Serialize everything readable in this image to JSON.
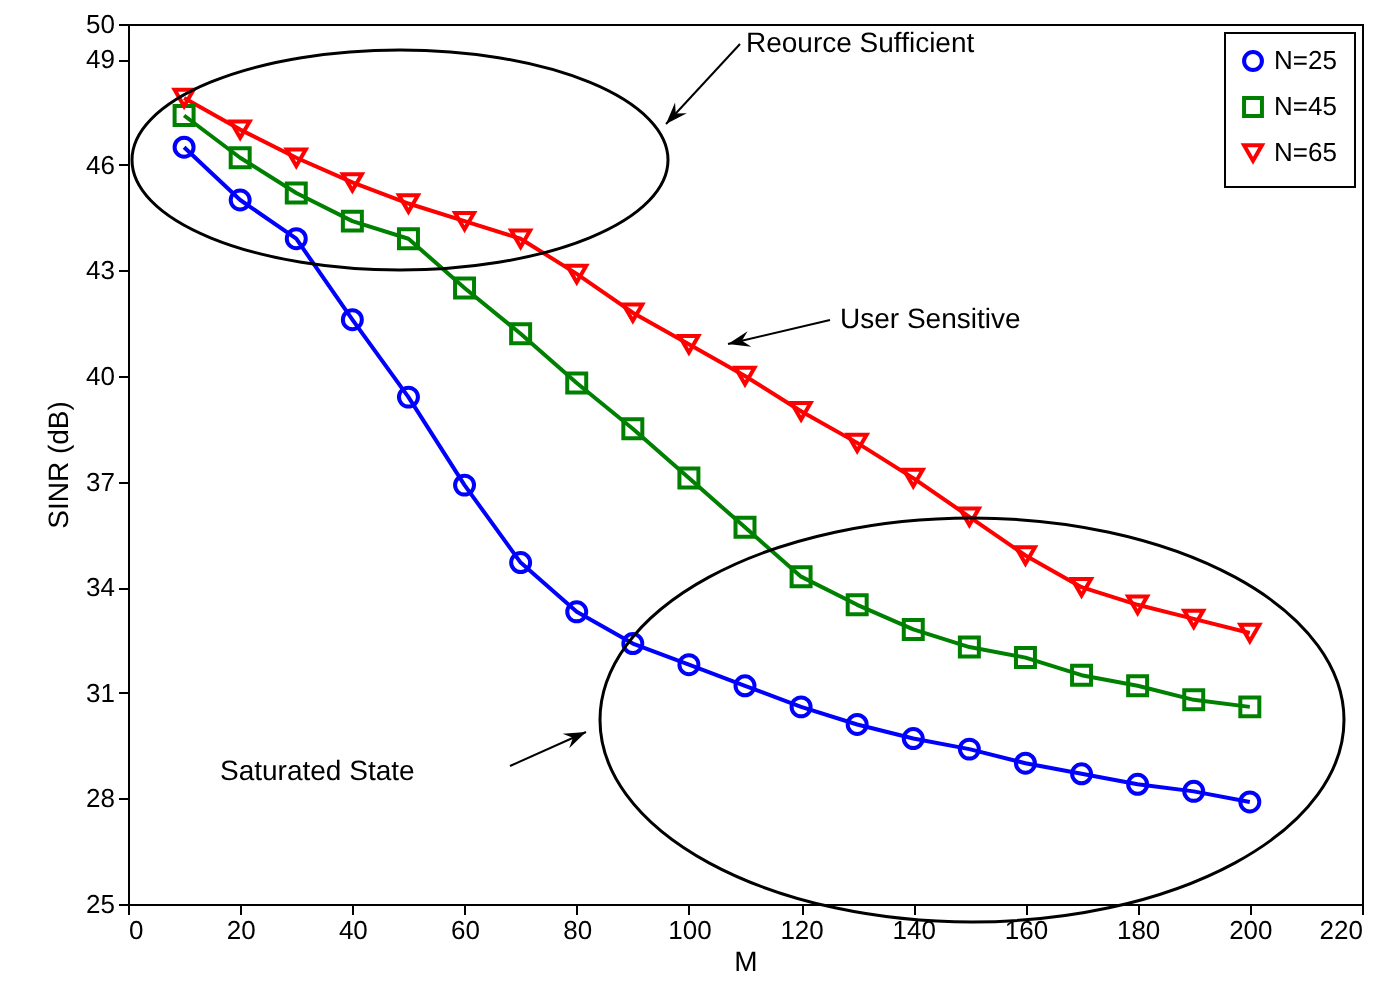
{
  "chart_data": {
    "type": "line",
    "xlabel": "M",
    "ylabel": "SINR (dB)",
    "x": [
      10,
      20,
      30,
      40,
      50,
      60,
      70,
      80,
      90,
      100,
      110,
      120,
      130,
      140,
      150,
      160,
      170,
      180,
      190,
      200
    ],
    "series": [
      {
        "name": "N=25",
        "color": "#0000ff",
        "marker": "circle",
        "values": [
          46.5,
          45.0,
          43.9,
          41.6,
          39.4,
          36.9,
          34.7,
          33.3,
          32.4,
          31.8,
          31.2,
          30.6,
          30.1,
          29.7,
          29.4,
          29.0,
          28.7,
          28.4,
          28.2,
          27.9
        ]
      },
      {
        "name": "N=45",
        "color": "#008000",
        "marker": "square",
        "values": [
          47.4,
          46.2,
          45.2,
          44.4,
          43.9,
          42.5,
          41.2,
          39.8,
          38.5,
          37.1,
          35.7,
          34.3,
          33.5,
          32.8,
          32.3,
          32.0,
          31.5,
          31.2,
          30.8,
          30.6
        ]
      },
      {
        "name": "N=65",
        "color": "#ff0000",
        "marker": "triangle",
        "values": [
          47.9,
          47.0,
          46.2,
          45.5,
          44.9,
          44.4,
          43.9,
          42.9,
          41.8,
          40.9,
          40.0,
          39.0,
          38.1,
          37.1,
          36.0,
          34.9,
          34.0,
          33.5,
          33.1,
          32.7
        ]
      }
    ],
    "xlim": [
      0,
      220
    ],
    "xticks": [
      0,
      20,
      40,
      60,
      80,
      100,
      120,
      140,
      160,
      180,
      200,
      220
    ],
    "ylim": [
      25,
      50
    ],
    "yticks": [
      25,
      28,
      31,
      34,
      37,
      40,
      43,
      46,
      49,
      50
    ],
    "grid": false,
    "legend": "top right",
    "line_style": "solid",
    "annotations": [
      "Reource Sufficient",
      "User Sensitive",
      "Saturated State"
    ]
  }
}
